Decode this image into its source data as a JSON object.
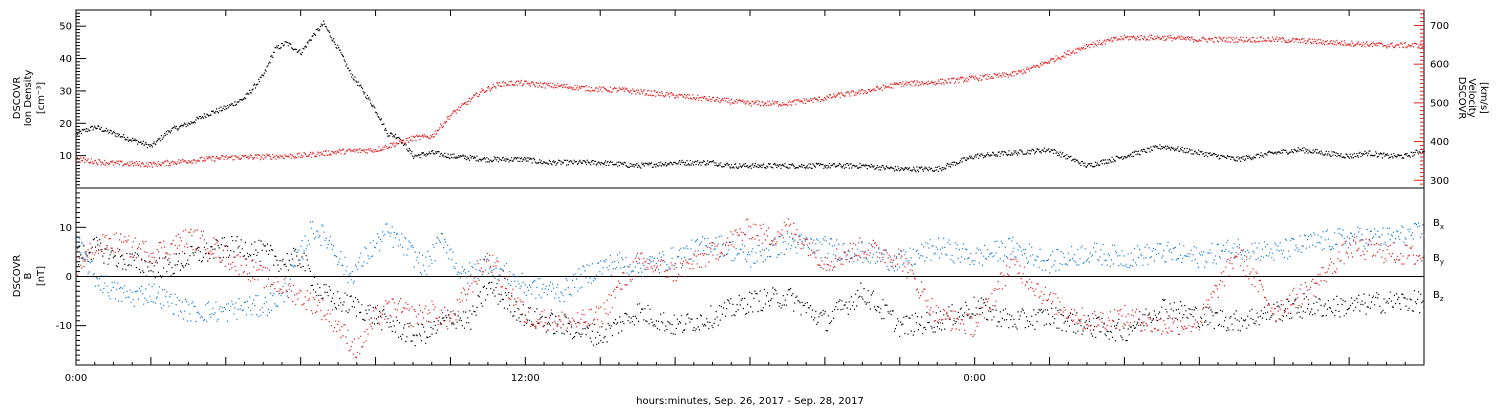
{
  "chart_data": [
    {
      "type": "scatter",
      "panel": "top",
      "x_range_hours": [
        0,
        36
      ],
      "left_axis": {
        "label_lines": [
          "DSCOVR",
          "Ion Density",
          "[cm⁻³]"
        ],
        "ylim": [
          0,
          55
        ],
        "ticks": [
          10,
          20,
          30,
          40,
          50
        ],
        "color": "#000000"
      },
      "right_axis": {
        "label_lines": [
          "DSCOVR",
          "Velocity",
          "[km/s]"
        ],
        "ylim": [
          280,
          740
        ],
        "ticks": [
          300,
          400,
          500,
          600,
          700
        ],
        "color": "#e02020"
      },
      "series": [
        {
          "name": "Ion Density",
          "axis": "left",
          "color": "#000000",
          "x": [
            0,
            0.5,
            1,
            1.5,
            2,
            2.5,
            3,
            3.5,
            4,
            4.5,
            5,
            5.3,
            5.6,
            6,
            6.3,
            6.6,
            7,
            7.3,
            7.6,
            7.9,
            8.1,
            8.3,
            8.6,
            9,
            9.5,
            10,
            11,
            12,
            12.5,
            13,
            14,
            15,
            16,
            17,
            17.5,
            18,
            18.5,
            19,
            19.5,
            20,
            21,
            22,
            23,
            24,
            25,
            26,
            27,
            28,
            29,
            30,
            31,
            32,
            32.7,
            33.3,
            34,
            34.5,
            35,
            35.5,
            36
          ],
          "y": [
            17,
            19,
            17,
            15,
            13,
            18,
            20,
            23,
            25,
            28,
            35,
            43,
            45,
            42,
            47,
            51,
            43,
            36,
            31,
            26,
            22,
            17,
            16,
            10,
            11,
            10,
            9,
            9,
            8,
            8,
            8,
            7,
            8,
            8,
            7,
            7,
            7,
            7,
            7,
            7,
            7,
            6,
            6,
            10,
            11,
            12,
            7,
            10,
            13,
            11,
            9,
            11,
            12,
            11,
            10,
            11,
            10,
            10,
            12
          ]
        },
        {
          "name": "Velocity",
          "axis": "right",
          "color": "#e02020",
          "x": [
            0,
            1,
            2,
            3,
            4,
            5,
            6,
            7,
            8,
            9,
            9.5,
            10,
            10.8,
            11.3,
            11.8,
            12.5,
            13,
            14,
            14.5,
            15,
            16,
            17,
            18,
            19,
            19.3,
            19.8,
            20.3,
            21,
            22,
            23,
            24,
            25,
            25.5,
            26,
            27,
            28,
            29,
            30,
            31,
            32,
            33,
            34,
            35,
            36
          ],
          "y": [
            355,
            345,
            342,
            352,
            360,
            362,
            365,
            375,
            380,
            410,
            415,
            470,
            530,
            550,
            553,
            547,
            544,
            536,
            535,
            530,
            520,
            510,
            500,
            500,
            505,
            510,
            520,
            530,
            550,
            555,
            565,
            575,
            590,
            610,
            650,
            670,
            670,
            665,
            665,
            665,
            660,
            655,
            650,
            650
          ]
        }
      ]
    },
    {
      "type": "scatter",
      "panel": "bottom",
      "x_range_hours": [
        0,
        36
      ],
      "left_axis": {
        "label_lines": [
          "DSCOVR",
          "B",
          "[nT]"
        ],
        "ylim": [
          -18,
          18
        ],
        "ticks": [
          -10,
          0,
          10
        ]
      },
      "zero_line": 0,
      "series": [
        {
          "name": "Bx",
          "color": "#000000",
          "x": [
            0,
            0.5,
            1,
            1.5,
            2,
            2.5,
            3,
            3.5,
            4,
            4.5,
            5,
            5.5,
            6,
            6.5,
            7,
            7.5,
            8,
            8.5,
            9,
            9.5,
            10,
            10.5,
            11,
            12,
            13,
            13.5,
            14,
            15,
            16,
            17,
            18,
            19,
            20,
            21,
            22,
            23,
            24,
            25,
            26,
            27,
            28,
            29,
            30,
            31,
            32,
            33,
            34,
            35,
            36
          ],
          "y": [
            4,
            6,
            4,
            3,
            2,
            2,
            4,
            5,
            6,
            6,
            5,
            3,
            4,
            -3,
            -5,
            -6,
            -8,
            -10,
            -12,
            -11,
            -8,
            -9,
            -2,
            -8,
            -10,
            -11,
            -12,
            -7,
            -10,
            -8,
            -5,
            -4,
            -9,
            -3,
            -10,
            -9,
            -6,
            -9,
            -8,
            -10,
            -11,
            -6,
            -8,
            -9,
            -7,
            -6,
            -6,
            -5,
            -5
          ]
        },
        {
          "name": "By",
          "color": "#1a7fd4",
          "x": [
            0,
            0.5,
            1,
            1.5,
            2,
            2.5,
            3,
            3.5,
            4,
            4.5,
            5,
            5.5,
            6,
            6.3,
            6.8,
            7.3,
            7.8,
            8.3,
            8.8,
            9.3,
            9.8,
            10.3,
            11,
            12,
            13,
            13.5,
            14,
            14.5,
            15,
            16,
            17,
            18,
            19,
            20,
            21,
            22,
            23,
            24,
            25,
            26,
            27,
            28,
            29,
            30,
            31,
            32,
            33,
            34,
            35,
            36
          ],
          "y": [
            7,
            0,
            -3,
            -4,
            -3,
            -5,
            -7,
            -7,
            -7,
            -6,
            -6,
            -4,
            5,
            10,
            7,
            0,
            5,
            9,
            6,
            2,
            8,
            0,
            3,
            -2,
            -3,
            0,
            2,
            3,
            2,
            4,
            7,
            4,
            7,
            6,
            5,
            3,
            6,
            4,
            6,
            3,
            5,
            4,
            5,
            4,
            6,
            5,
            7,
            8,
            8,
            9
          ]
        },
        {
          "name": "Bz",
          "color": "#e02020",
          "x": [
            0,
            0.5,
            1,
            1.5,
            2,
            2.5,
            3,
            3.5,
            4,
            4.5,
            5,
            5.5,
            6,
            6.5,
            7,
            7.5,
            8,
            8.5,
            9,
            9.5,
            10,
            10.5,
            11,
            12,
            13,
            13.5,
            14,
            14.5,
            15,
            16,
            17,
            18,
            18.5,
            19,
            19.5,
            20,
            21,
            22,
            23,
            24,
            25,
            26,
            27,
            28,
            29,
            30,
            31,
            32,
            33,
            34,
            35,
            36
          ],
          "y": [
            2,
            6,
            7,
            6,
            5,
            6,
            8,
            7,
            4,
            2,
            0,
            -2,
            -4,
            -6,
            -10,
            -15,
            -8,
            -6,
            -8,
            -7,
            -9,
            -2,
            4,
            -8,
            -9,
            -9,
            -8,
            -2,
            3,
            1,
            5,
            10,
            8,
            10,
            7,
            3,
            6,
            4,
            -8,
            -10,
            3,
            -5,
            -9,
            -8,
            -10,
            -9,
            5,
            -7,
            -2,
            6,
            5,
            4
          ]
        }
      ],
      "legend": {
        "placement": "right",
        "entries": [
          {
            "base": "B",
            "sub": "x",
            "color": "#000000"
          },
          {
            "base": "B",
            "sub": "y",
            "color": "#1a7fd4"
          },
          {
            "base": "B",
            "sub": "z",
            "color": "#e02020"
          }
        ]
      }
    }
  ],
  "x_axis": {
    "title": "hours:minutes, Sep. 26, 2017 - Sep. 28, 2017",
    "labels": [
      {
        "hour": 0,
        "text": "0:00"
      },
      {
        "hour": 12,
        "text": "12:00"
      },
      {
        "hour": 24,
        "text": "0:00"
      }
    ]
  }
}
